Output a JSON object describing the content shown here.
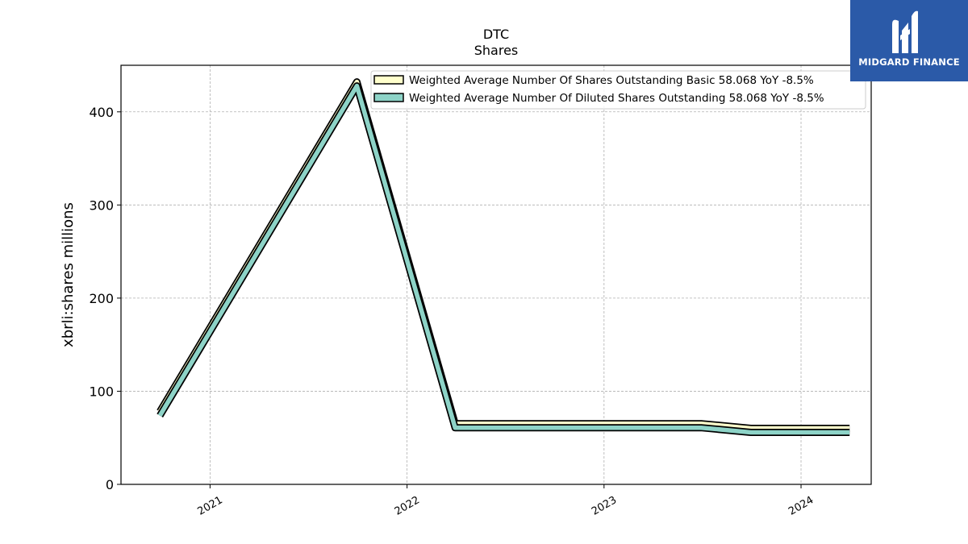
{
  "chart_data": {
    "type": "line",
    "title": "DTC",
    "subtitle": "Shares",
    "ylabel": "xbrli:shares millions",
    "xlabel": "",
    "xlim": [
      "2020-07-20",
      "2024-05-10"
    ],
    "ylim": [
      0,
      450
    ],
    "yticks": [
      0,
      100,
      200,
      300,
      400
    ],
    "xticks": [
      {
        "date": "2021-01-01",
        "label": "2021"
      },
      {
        "date": "2022-01-01",
        "label": "2022"
      },
      {
        "date": "2023-01-01",
        "label": "2023"
      },
      {
        "date": "2024-01-01",
        "label": "2024"
      }
    ],
    "grid": true,
    "legend_position": "top-right",
    "series": [
      {
        "name": "Weighted Average Number Of Shares Outstanding Basic  58.068 YoY -8.5%",
        "color": "#ffffcc",
        "x": [
          "2020-09-30",
          "2021-09-30",
          "2022-03-31",
          "2022-06-30",
          "2022-09-30",
          "2022-12-31",
          "2023-03-31",
          "2023-06-30",
          "2023-09-30",
          "2023-12-31",
          "2024-03-31"
        ],
        "y": [
          76,
          430,
          63,
          63,
          63,
          63,
          63,
          63,
          58,
          58,
          58
        ]
      },
      {
        "name": "Weighted Average Number Of Diluted Shares Outstanding  58.068 YoY -8.5%",
        "color": "#8dd3c7",
        "x": [
          "2020-09-30",
          "2021-09-30",
          "2022-03-31",
          "2022-06-30",
          "2022-09-30",
          "2022-12-31",
          "2023-03-31",
          "2023-06-30",
          "2023-09-30",
          "2023-12-31",
          "2024-03-31"
        ],
        "y": [
          76,
          430,
          63,
          63,
          63,
          63,
          63,
          63,
          58,
          58,
          58
        ]
      }
    ]
  },
  "logo": {
    "text": "MIDGARD FINANCE",
    "color": "#2b5aa8"
  }
}
